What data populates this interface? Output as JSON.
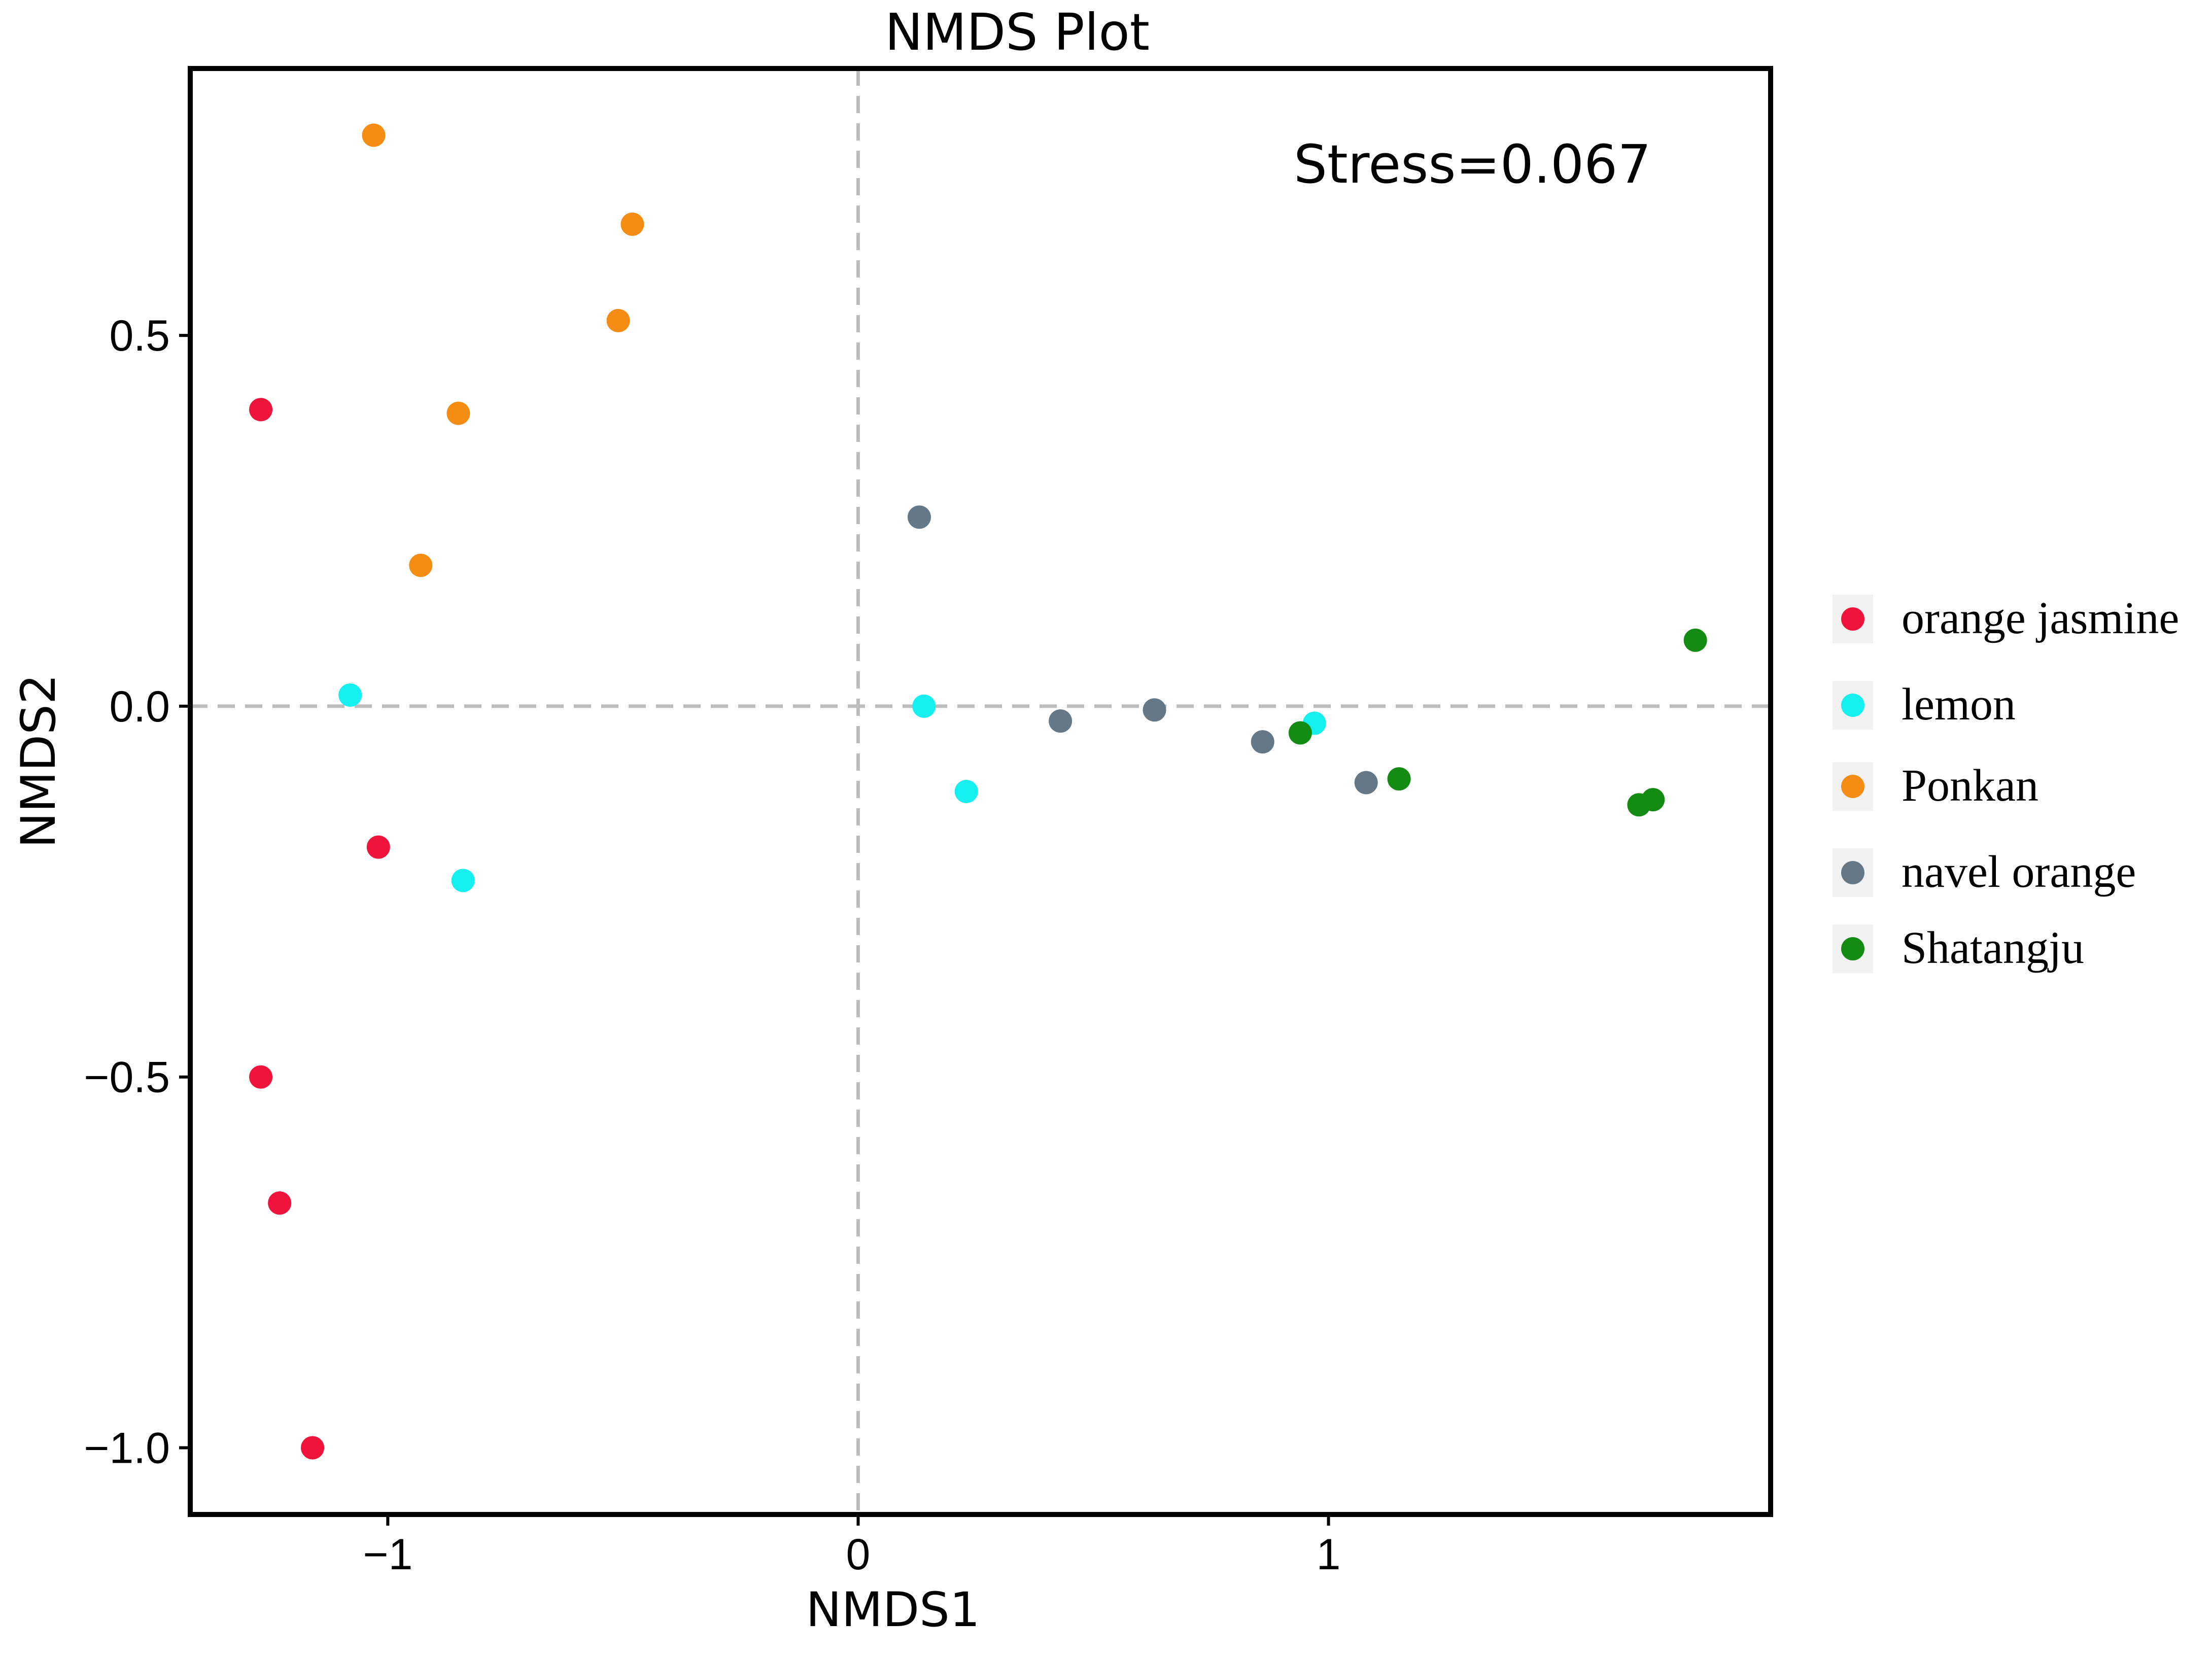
{
  "chart_data": {
    "type": "scatter",
    "title": "NMDS Plot",
    "xlabel": "NMDS1",
    "ylabel": "NMDS2",
    "xlim": [
      -1.42,
      1.94
    ],
    "ylim": [
      -1.09,
      0.86
    ],
    "xticks": [
      -1,
      0,
      1
    ],
    "xtick_labels": [
      "−1",
      "0",
      "1"
    ],
    "yticks": [
      0.5,
      0.0,
      -0.5,
      -1.0
    ],
    "ytick_labels": [
      "0.5",
      "0.0",
      "−0.5",
      "−1.0"
    ],
    "reference_lines": {
      "x": 0,
      "y": 0,
      "style": "dashed"
    },
    "annotation": "Stress=0.067",
    "legend_position": "right",
    "series": [
      {
        "name": "orange jasmine",
        "color": "#f0143c",
        "points": [
          [
            -1.27,
            0.4
          ],
          [
            -1.02,
            -0.19
          ],
          [
            -1.27,
            -0.5
          ],
          [
            -1.23,
            -0.67
          ],
          [
            -1.16,
            -1.0
          ]
        ]
      },
      {
        "name": "lemon",
        "color": "#14f0f0",
        "points": [
          [
            -1.08,
            0.015
          ],
          [
            -0.84,
            -0.235
          ],
          [
            0.14,
            0.0
          ],
          [
            0.23,
            -0.115
          ],
          [
            0.97,
            -0.023
          ]
        ]
      },
      {
        "name": "Ponkan",
        "color": "#f58c14",
        "points": [
          [
            -1.03,
            0.77
          ],
          [
            -0.48,
            0.65
          ],
          [
            -0.51,
            0.52
          ],
          [
            -0.85,
            0.395
          ],
          [
            -0.93,
            0.19
          ]
        ]
      },
      {
        "name": "navel orange",
        "color": "#647887",
        "points": [
          [
            0.13,
            0.255
          ],
          [
            0.43,
            -0.02
          ],
          [
            0.63,
            -0.005
          ],
          [
            0.86,
            -0.048
          ],
          [
            1.08,
            -0.103
          ]
        ]
      },
      {
        "name": "Shatangju",
        "color": "#148c14",
        "points": [
          [
            0.94,
            -0.036
          ],
          [
            1.15,
            -0.098
          ],
          [
            1.66,
            -0.133
          ],
          [
            1.69,
            -0.126
          ],
          [
            1.78,
            0.089
          ]
        ]
      }
    ]
  }
}
